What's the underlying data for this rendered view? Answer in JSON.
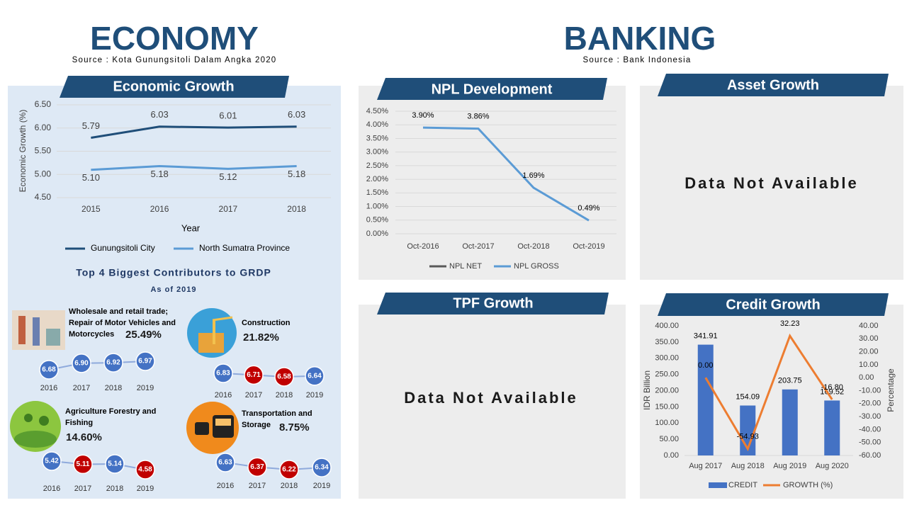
{
  "header": {
    "economy_title": "ECONOMY",
    "economy_source": "Source : Kota Gunungsitoli Dalam Angka 2020",
    "banking_title": "BANKING",
    "banking_source": "Source : Bank Indonesia"
  },
  "chart_data": [
    {
      "type": "line",
      "title": "Economic Growth",
      "x_label": "Year",
      "y_label": "Economic Growth (%)",
      "categories": [
        "2015",
        "2016",
        "2017",
        "2018"
      ],
      "series": [
        {
          "name": "Gunungsitoli City",
          "color": "#1f4e79",
          "values": [
            5.79,
            6.03,
            6.01,
            6.03
          ],
          "value_labels": [
            "5.79",
            "6.03",
            "6.01",
            "6.03"
          ]
        },
        {
          "name": "North Sumatra Province",
          "color": "#5b9bd5",
          "values": [
            5.1,
            5.18,
            5.12,
            5.18
          ],
          "value_labels": [
            "5.10",
            "5.18",
            "5.12",
            "5.18"
          ]
        }
      ],
      "ylim": [
        4.5,
        6.5
      ],
      "yticks": [
        {
          "value": 4.5,
          "label": "4.50"
        },
        {
          "value": 5,
          "label": "5.00"
        },
        {
          "value": 5.5,
          "label": "5.50"
        },
        {
          "value": 6,
          "label": "6.00"
        },
        {
          "value": 6.5,
          "label": "6.50"
        }
      ],
      "grid": true,
      "legend": "bottom"
    },
    {
      "type": "line",
      "title": "NPL Development",
      "categories": [
        "Oct-2016",
        "Oct-2017",
        "Oct-2018",
        "Oct-2019"
      ],
      "series": [
        {
          "name": "NPL NET",
          "color": "#595959",
          "values": [
            null,
            null,
            null,
            null
          ]
        },
        {
          "name": "NPL GROSS",
          "color": "#5b9bd5",
          "values": [
            3.9,
            3.86,
            1.69,
            0.49
          ],
          "value_labels": [
            "3.90%",
            "3.86%",
            "1.69%",
            "0.49%"
          ]
        }
      ],
      "ylim": [
        0,
        4.5
      ],
      "yticks": [
        {
          "value": 0,
          "label": "0.00%"
        },
        {
          "value": 0.5,
          "label": "0.50%"
        },
        {
          "value": 1,
          "label": "1.00%"
        },
        {
          "value": 1.5,
          "label": "1.50%"
        },
        {
          "value": 2,
          "label": "2.00%"
        },
        {
          "value": 2.5,
          "label": "2.50%"
        },
        {
          "value": 3,
          "label": "3.00%"
        },
        {
          "value": 3.5,
          "label": "3.50%"
        },
        {
          "value": 4,
          "label": "4.00%"
        },
        {
          "value": 4.5,
          "label": "4.50%"
        }
      ],
      "grid": true,
      "legend": "bottom"
    },
    {
      "type": "bar",
      "title": "Credit Growth",
      "y_label": "IDR Billion",
      "y2_label": "Percentage",
      "categories": [
        "Aug 2017",
        "Aug 2018",
        "Aug 2019",
        "Aug 2020"
      ],
      "series": [
        {
          "name": "CREDIT",
          "type": "bar",
          "color": "#4472c4",
          "values": [
            341.91,
            154.09,
            203.75,
            169.52
          ],
          "value_labels": [
            "341.91",
            "154.09",
            "203.75",
            "169.52"
          ]
        },
        {
          "name": "GROWTH (%)",
          "type": "line",
          "axis": "y2",
          "color": "#ed7d31",
          "values": [
            0,
            -54.93,
            32.23,
            -16.8
          ],
          "value_labels": [
            "0.00",
            "-54.93",
            "32.23",
            "-16.80"
          ]
        }
      ],
      "ylim": [
        0,
        400
      ],
      "yticks": [
        {
          "value": 0,
          "label": "0.00"
        },
        {
          "value": 50,
          "label": "50.00"
        },
        {
          "value": 100,
          "label": "100.00"
        },
        {
          "value": 150,
          "label": "150.00"
        },
        {
          "value": 200,
          "label": "200.00"
        },
        {
          "value": 250,
          "label": "250.00"
        },
        {
          "value": 300,
          "label": "300.00"
        },
        {
          "value": 350,
          "label": "350.00"
        },
        {
          "value": 400,
          "label": "400.00"
        }
      ],
      "y2lim": [
        -60,
        40
      ],
      "y2ticks": [
        {
          "value": -60,
          "label": "-60.00"
        },
        {
          "value": -50,
          "label": "-50.00"
        },
        {
          "value": -40,
          "label": "-40.00"
        },
        {
          "value": -30,
          "label": "-30.00"
        },
        {
          "value": -20,
          "label": "-20.00"
        },
        {
          "value": -10,
          "label": "-10.00"
        },
        {
          "value": 0,
          "label": "0.00"
        },
        {
          "value": 10,
          "label": "10.00"
        },
        {
          "value": 20,
          "label": "20.00"
        },
        {
          "value": 30,
          "label": "30.00"
        },
        {
          "value": 40,
          "label": "40.00"
        }
      ],
      "grid": false,
      "legend": "bottom"
    }
  ],
  "grdp": {
    "title": "Top 4 Biggest Contributors to GRDP",
    "subtitle": "As of 2019",
    "years": [
      "2016",
      "2017",
      "2018",
      "2019"
    ],
    "sectors": [
      {
        "name": "Wholesale and retail trade; Repair of Motor Vehicles and Motorcycles",
        "share": "25.49%",
        "values": [
          6.68,
          6.9,
          6.92,
          6.97
        ],
        "value_labels": [
          "6.68",
          "6.90",
          "6.92",
          "6.97"
        ],
        "point_colors": [
          "#4472c4",
          "#4472c4",
          "#4472c4",
          "#4472c4"
        ]
      },
      {
        "name": "Construction",
        "share": "21.82%",
        "values": [
          6.83,
          6.71,
          6.58,
          6.64
        ],
        "value_labels": [
          "6.83",
          "6.71",
          "6.58",
          "6.64"
        ],
        "point_colors": [
          "#4472c4",
          "#c00000",
          "#c00000",
          "#4472c4"
        ]
      },
      {
        "name": "Agriculture Forestry and Fishing",
        "share": "14.60%",
        "values": [
          5.42,
          5.11,
          5.14,
          4.58
        ],
        "value_labels": [
          "5.42",
          "5.11",
          "5.14",
          "4.58"
        ],
        "point_colors": [
          "#4472c4",
          "#c00000",
          "#4472c4",
          "#c00000"
        ]
      },
      {
        "name": "Transportation and Storage",
        "share": "8.75%",
        "values": [
          6.63,
          6.37,
          6.22,
          6.34
        ],
        "value_labels": [
          "6.63",
          "6.37",
          "6.22",
          "6.34"
        ],
        "point_colors": [
          "#4472c4",
          "#c00000",
          "#c00000",
          "#4472c4"
        ]
      }
    ]
  },
  "asset_growth": {
    "title": "Asset Growth",
    "message": "Data Not Available"
  },
  "tpf_growth": {
    "title": "TPF Growth",
    "message": "Data Not Available"
  }
}
